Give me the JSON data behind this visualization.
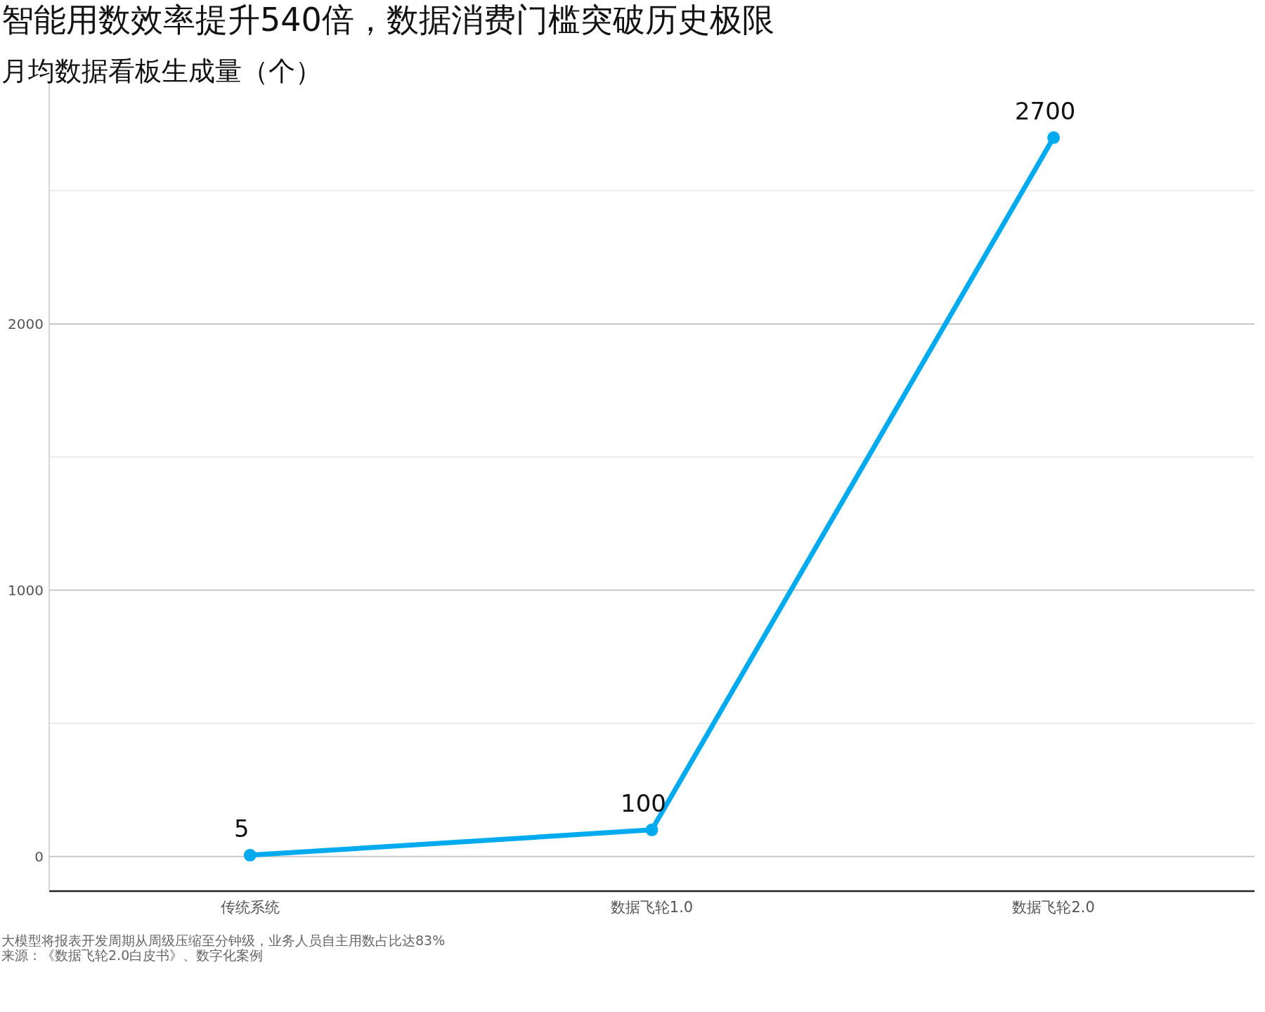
{
  "chart_data": {
    "type": "line",
    "title": "智能用数效率提升540倍，数据消费门槛突破历史极限",
    "subtitle": "月均数据看板生成量（个）",
    "categories": [
      "传统系统",
      "数据飞轮1.0",
      "数据飞轮2.0"
    ],
    "series": [
      {
        "color": "#00aaee",
        "values": [
          5,
          100,
          2700
        ]
      }
    ],
    "ylim": [
      -130,
      2900
    ],
    "yticks": [
      0,
      {
        "value": 500,
        "label": null
      },
      1000,
      {
        "value": 1500,
        "label": null
      },
      2000,
      {
        "value": 2500,
        "label": null
      }
    ],
    "grid": "y",
    "marker": "circle",
    "line_style": "solid",
    "data_labels": true,
    "annotations": [
      "大模型将报表开发周期从周级压缩至分钟级，业务人员自主用数占比达83%",
      "来源：《数据飞轮2.0白皮书》、数字化案例"
    ]
  }
}
